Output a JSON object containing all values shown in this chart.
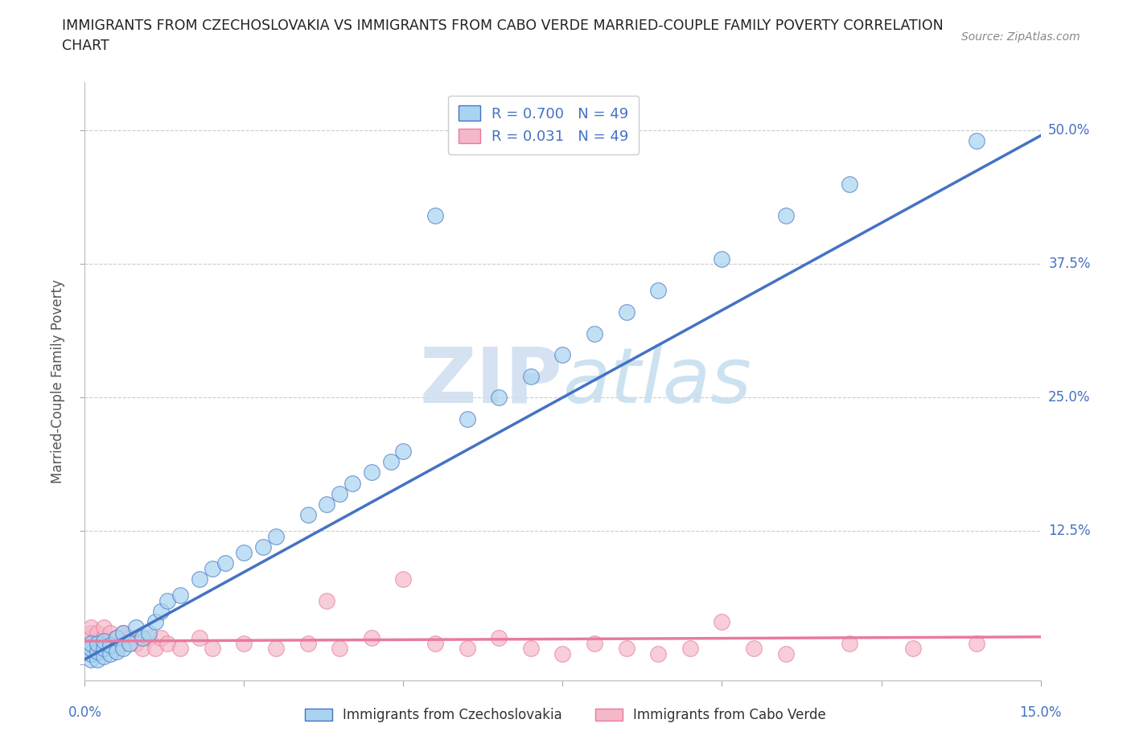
{
  "title_line1": "IMMIGRANTS FROM CZECHOSLOVAKIA VS IMMIGRANTS FROM CABO VERDE MARRIED-COUPLE FAMILY POVERTY CORRELATION",
  "title_line2": "CHART",
  "source": "Source: ZipAtlas.com",
  "ylabel": "Married-Couple Family Poverty",
  "ytick_values": [
    0.0,
    0.125,
    0.25,
    0.375,
    0.5
  ],
  "ytick_labels": [
    "",
    "12.5%",
    "25.0%",
    "37.5%",
    "50.0%"
  ],
  "xlim": [
    0.0,
    0.15
  ],
  "ylim": [
    -0.015,
    0.545
  ],
  "color_blue": "#a8d4f0",
  "color_pink": "#f4b8c8",
  "color_blue_line": "#4472c4",
  "color_pink_line": "#e87aa0",
  "watermark_color": "#d0dff0",
  "series1_name": "Immigrants from Czechoslovakia",
  "series2_name": "Immigrants from Cabo Verde",
  "R1": 0.7,
  "N1": 49,
  "R2": 0.031,
  "N2": 49,
  "czecho_x": [
    0.001,
    0.001,
    0.001,
    0.001,
    0.002,
    0.002,
    0.002,
    0.003,
    0.003,
    0.003,
    0.004,
    0.004,
    0.005,
    0.005,
    0.006,
    0.006,
    0.007,
    0.008,
    0.009,
    0.01,
    0.011,
    0.012,
    0.013,
    0.015,
    0.018,
    0.02,
    0.022,
    0.025,
    0.028,
    0.03,
    0.035,
    0.038,
    0.04,
    0.042,
    0.045,
    0.048,
    0.05,
    0.055,
    0.06,
    0.065,
    0.07,
    0.075,
    0.08,
    0.085,
    0.09,
    0.1,
    0.11,
    0.12,
    0.14
  ],
  "czecho_y": [
    0.005,
    0.01,
    0.015,
    0.02,
    0.005,
    0.012,
    0.02,
    0.008,
    0.015,
    0.022,
    0.01,
    0.018,
    0.012,
    0.025,
    0.015,
    0.03,
    0.02,
    0.035,
    0.025,
    0.03,
    0.04,
    0.05,
    0.06,
    0.065,
    0.08,
    0.09,
    0.095,
    0.105,
    0.11,
    0.12,
    0.14,
    0.15,
    0.16,
    0.17,
    0.18,
    0.19,
    0.2,
    0.42,
    0.23,
    0.25,
    0.27,
    0.29,
    0.31,
    0.33,
    0.35,
    0.38,
    0.42,
    0.45,
    0.49
  ],
  "verde_x": [
    0.001,
    0.001,
    0.001,
    0.001,
    0.001,
    0.002,
    0.002,
    0.002,
    0.003,
    0.003,
    0.003,
    0.004,
    0.004,
    0.005,
    0.005,
    0.006,
    0.006,
    0.007,
    0.008,
    0.009,
    0.01,
    0.011,
    0.012,
    0.013,
    0.015,
    0.018,
    0.02,
    0.025,
    0.03,
    0.035,
    0.038,
    0.04,
    0.045,
    0.05,
    0.055,
    0.06,
    0.065,
    0.07,
    0.075,
    0.08,
    0.085,
    0.09,
    0.095,
    0.1,
    0.105,
    0.11,
    0.12,
    0.13,
    0.14
  ],
  "verde_y": [
    0.015,
    0.02,
    0.025,
    0.03,
    0.035,
    0.01,
    0.02,
    0.03,
    0.015,
    0.025,
    0.035,
    0.02,
    0.03,
    0.015,
    0.025,
    0.02,
    0.03,
    0.025,
    0.02,
    0.015,
    0.025,
    0.015,
    0.025,
    0.02,
    0.015,
    0.025,
    0.015,
    0.02,
    0.015,
    0.02,
    0.06,
    0.015,
    0.025,
    0.08,
    0.02,
    0.015,
    0.025,
    0.015,
    0.01,
    0.02,
    0.015,
    0.01,
    0.015,
    0.04,
    0.015,
    0.01,
    0.02,
    0.015,
    0.02
  ],
  "blue_line_x": [
    0.0,
    0.15
  ],
  "blue_line_y": [
    0.005,
    0.495
  ],
  "pink_line_x": [
    0.0,
    0.15
  ],
  "pink_line_y": [
    0.022,
    0.026
  ]
}
